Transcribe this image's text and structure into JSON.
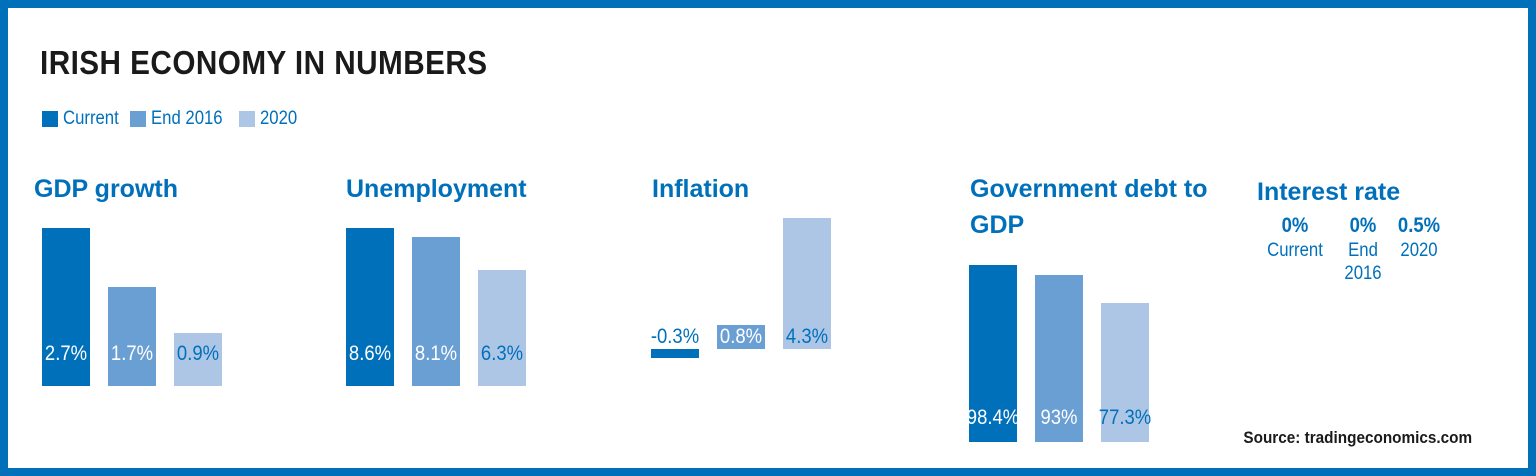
{
  "title": "IRISH ECONOMY IN NUMBERS",
  "legend": [
    {
      "label": "Current",
      "color": "#0070bb"
    },
    {
      "label": "End 2016",
      "color": "#6a9fd4"
    },
    {
      "label": "2020",
      "color": "#adc6e6"
    }
  ],
  "chart_data": [
    {
      "type": "bar",
      "title": "GDP growth",
      "categories": [
        "Current",
        "End 2016",
        "2020"
      ],
      "values": [
        2.7,
        1.7,
        0.9
      ],
      "labels": [
        "2.7%",
        "1.7%",
        "0.9%"
      ]
    },
    {
      "type": "bar",
      "title": "Unemployment",
      "categories": [
        "Current",
        "End 2016",
        "2020"
      ],
      "values": [
        8.6,
        8.1,
        6.3
      ],
      "labels": [
        "8.6%",
        "8.1%",
        "6.3%"
      ]
    },
    {
      "type": "bar",
      "title": "Inflation",
      "categories": [
        "Current",
        "End 2016",
        "2020"
      ],
      "values": [
        -0.3,
        0.8,
        4.3
      ],
      "labels": [
        "-0.3%",
        "0.8%",
        "4.3%"
      ]
    },
    {
      "type": "bar",
      "title": "Government debt to GDP",
      "categories": [
        "Current",
        "End 2016",
        "2020"
      ],
      "values": [
        98.4,
        93,
        77.3
      ],
      "labels": [
        "98.4%",
        "93%",
        "77.3%"
      ]
    },
    {
      "type": "table",
      "title": "Interest rate",
      "categories": [
        "Current",
        "End 2016",
        "2020"
      ],
      "values": [
        0,
        0,
        0.5
      ],
      "labels": [
        "0%",
        "0%",
        "0.5%"
      ]
    }
  ],
  "interest": {
    "title": "Interest rate",
    "items": [
      {
        "value": "0%",
        "category": "Current"
      },
      {
        "value": "0%",
        "category": "End\n2016"
      },
      {
        "value": "0.5%",
        "category": "2020"
      }
    ]
  },
  "source": "Source: tradingeconomics.com"
}
